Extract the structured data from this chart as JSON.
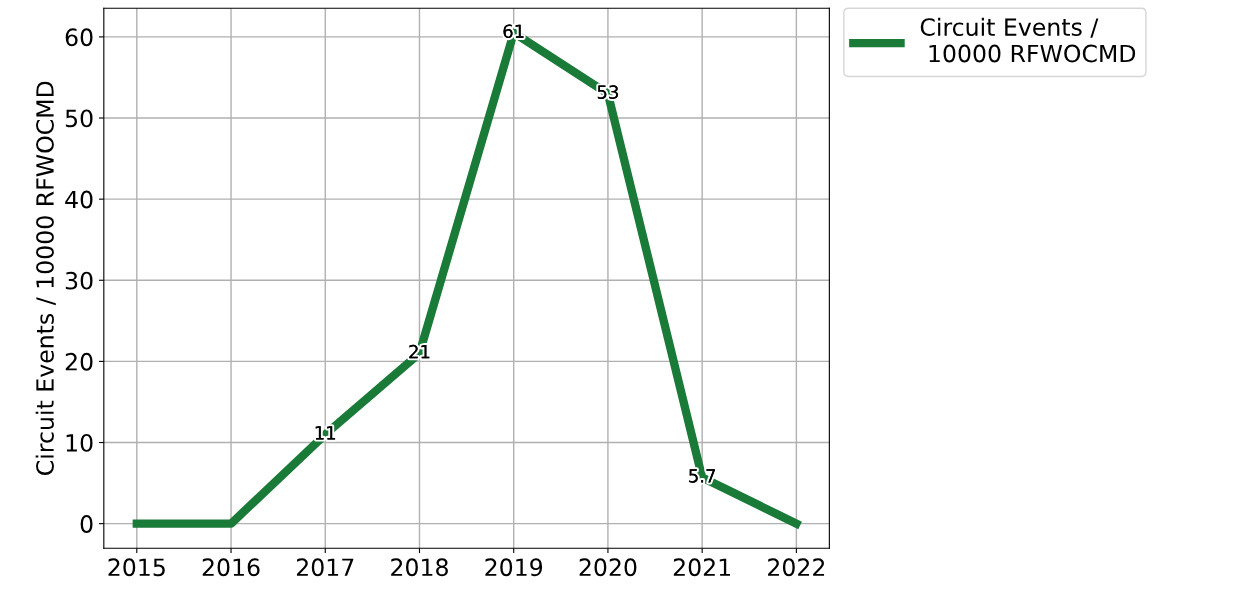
{
  "chart_data": {
    "type": "line",
    "ylabel": "Circuit Events / 10000 RFWOCMD",
    "x": [
      2015,
      2016,
      2017,
      2018,
      2019,
      2020,
      2021,
      2022
    ],
    "series": [
      {
        "name": "Circuit Events /\n 10000 RFWOCMD",
        "color": "#1a7a38",
        "values": [
          0,
          0,
          11,
          21,
          60.5,
          53,
          5.7,
          0
        ],
        "value_labels": [
          null,
          null,
          "11",
          "21",
          "61",
          "53",
          "5.7",
          null
        ]
      }
    ],
    "xlim": [
      2014.65,
      2022.35
    ],
    "xticks": [
      2015,
      2016,
      2017,
      2018,
      2019,
      2020,
      2021,
      2022
    ],
    "ylim": [
      -3.025,
      63.525
    ],
    "yticks": [
      0,
      10,
      20,
      30,
      40,
      50,
      60
    ],
    "grid": true,
    "legend": "top right",
    "line_style": "solid",
    "marker": "none"
  }
}
